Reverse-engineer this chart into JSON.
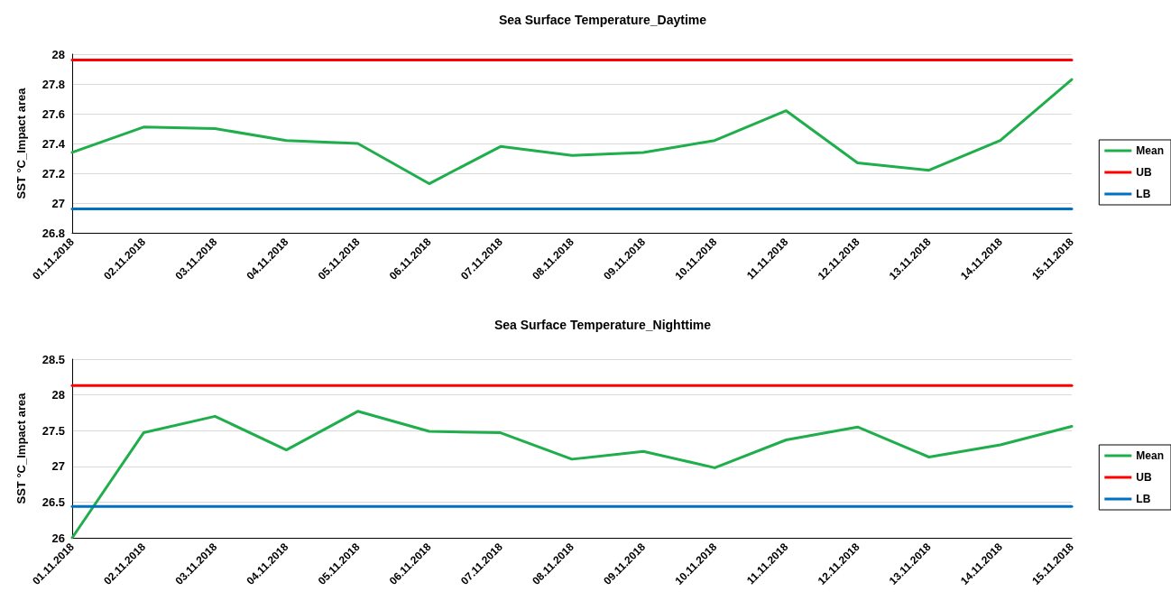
{
  "chart_data": [
    {
      "type": "line",
      "title": "Sea Surface Temperature_Daytime",
      "ylabel": "SST °C_Impact area",
      "categories": [
        "01.11.2018",
        "02.11.2018",
        "03.11.2018",
        "04.11.2018",
        "05.11.2018",
        "06.11.2018",
        "07.11.2018",
        "08.11.2018",
        "09.11.2018",
        "10.11.2018",
        "11.11.2018",
        "12.11.2018",
        "13.11.2018",
        "14.11.2018",
        "15.11.2018"
      ],
      "series": [
        {
          "name": "Mean",
          "color": "#1fae4b",
          "values": [
            27.34,
            27.51,
            27.5,
            27.42,
            27.4,
            27.13,
            27.38,
            27.32,
            27.34,
            27.42,
            27.62,
            27.27,
            27.22,
            27.42,
            27.83
          ]
        },
        {
          "name": "UB",
          "color": "#ff0000",
          "values": [
            27.96,
            27.96,
            27.96,
            27.96,
            27.96,
            27.96,
            27.96,
            27.96,
            27.96,
            27.96,
            27.96,
            27.96,
            27.96,
            27.96,
            27.96
          ]
        },
        {
          "name": "LB",
          "color": "#0070c0",
          "values": [
            26.96,
            26.96,
            26.96,
            26.96,
            26.96,
            26.96,
            26.96,
            26.96,
            26.96,
            26.96,
            26.96,
            26.96,
            26.96,
            26.96,
            26.96
          ]
        }
      ],
      "ylim": [
        26.8,
        28
      ],
      "yticks": [
        26.8,
        27,
        27.2,
        27.4,
        27.6,
        27.8,
        28
      ],
      "grid": "y",
      "legend": "right",
      "marker": "none",
      "line_style": "solid"
    },
    {
      "type": "line",
      "title": "Sea Surface Temperature_Nighttime",
      "ylabel": "SST °C_Impact area",
      "categories": [
        "01.11.2018",
        "02.11.2018",
        "03.11.2018",
        "04.11.2018",
        "05.11.2018",
        "06.11.2018",
        "07.11.2018",
        "08.11.2018",
        "09.11.2018",
        "10.11.2018",
        "11.11.2018",
        "12.11.2018",
        "13.11.2018",
        "14.11.2018",
        "15.11.2018"
      ],
      "series": [
        {
          "name": "Mean",
          "color": "#1fae4b",
          "values": [
            26.0,
            27.47,
            27.7,
            27.23,
            27.77,
            27.49,
            27.47,
            27.1,
            27.21,
            26.98,
            27.37,
            27.55,
            27.13,
            27.3,
            27.56
          ]
        },
        {
          "name": "UB",
          "color": "#ff0000",
          "values": [
            28.13,
            28.13,
            28.13,
            28.13,
            28.13,
            28.13,
            28.13,
            28.13,
            28.13,
            28.13,
            28.13,
            28.13,
            28.13,
            28.13,
            28.13
          ]
        },
        {
          "name": "LB",
          "color": "#0070c0",
          "values": [
            26.44,
            26.44,
            26.44,
            26.44,
            26.44,
            26.44,
            26.44,
            26.44,
            26.44,
            26.44,
            26.44,
            26.44,
            26.44,
            26.44,
            26.44
          ]
        }
      ],
      "ylim": [
        26,
        28.5
      ],
      "yticks": [
        26,
        26.5,
        27,
        27.5,
        28,
        28.5
      ],
      "grid": "y",
      "legend": "right",
      "marker": "none",
      "line_style": "solid"
    }
  ]
}
